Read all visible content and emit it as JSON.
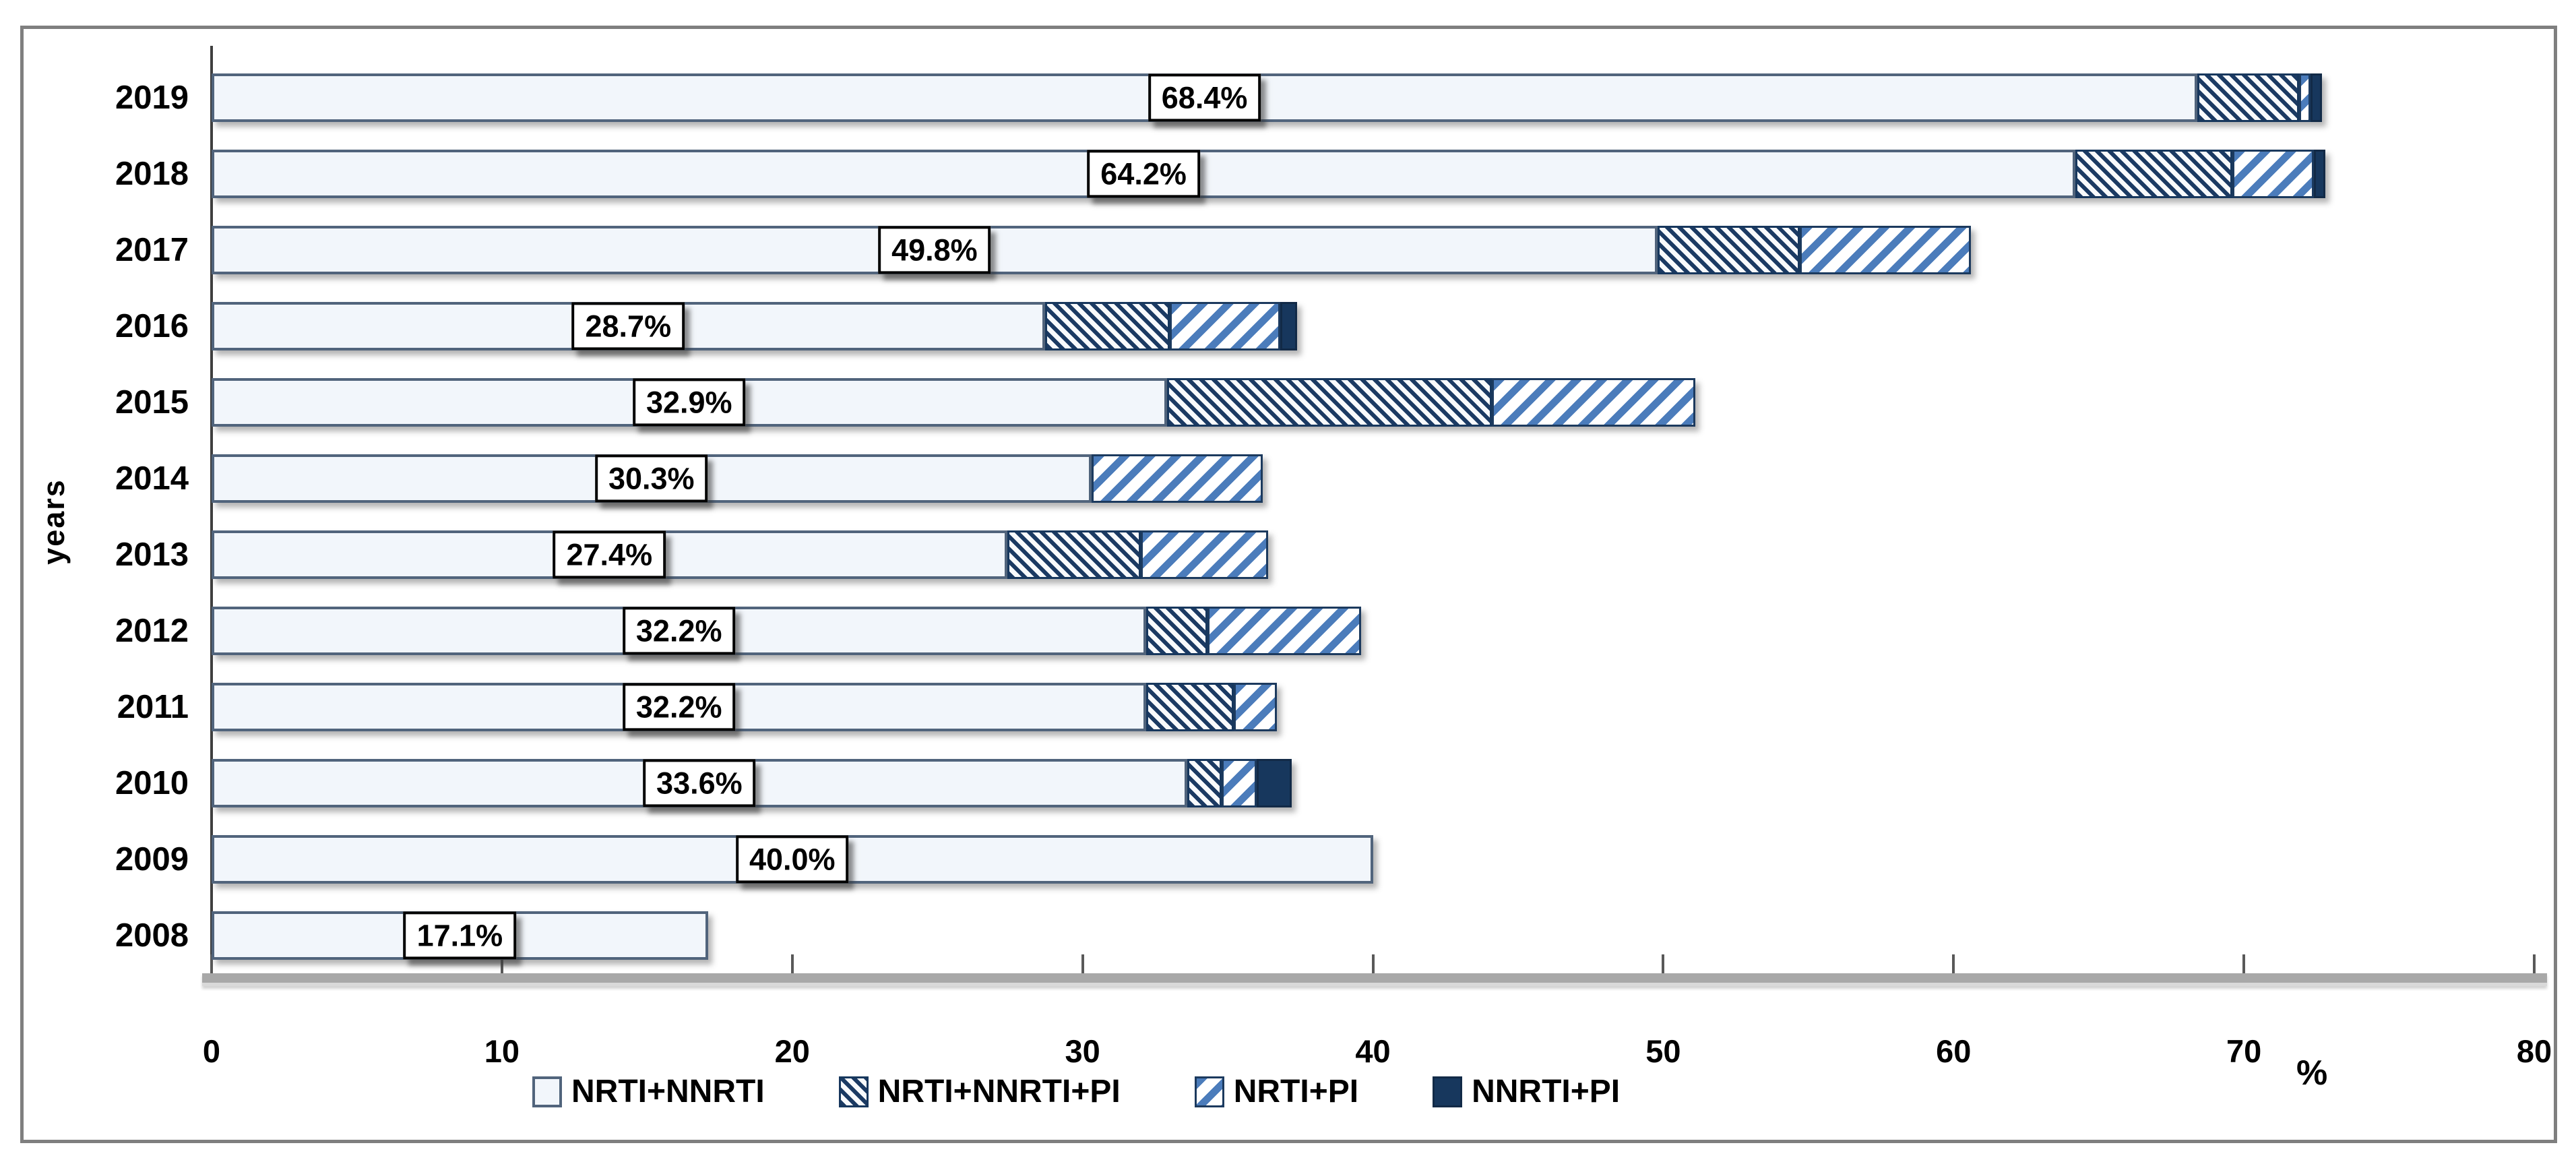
{
  "chart_data": {
    "type": "bar",
    "orientation": "horizontal",
    "stacked": true,
    "title": "",
    "xlabel": "%",
    "ylabel": "years",
    "xlim": [
      0,
      80
    ],
    "xticks": [
      0,
      10,
      20,
      30,
      40,
      50,
      60,
      70,
      80
    ],
    "grid": false,
    "legend_position": "bottom",
    "categories": [
      "2019",
      "2018",
      "2017",
      "2016",
      "2015",
      "2014",
      "2013",
      "2012",
      "2011",
      "2010",
      "2009",
      "2008"
    ],
    "series": [
      {
        "name": "NRTI+NNRTI",
        "style": "light",
        "values": [
          68.4,
          64.2,
          49.8,
          28.7,
          32.9,
          30.3,
          27.4,
          32.2,
          32.2,
          33.6,
          40.0,
          17.1
        ]
      },
      {
        "name": "NRTI+NNRTI+PI",
        "style": "dense",
        "values": [
          3.5,
          5.4,
          4.9,
          4.3,
          11.2,
          0,
          4.6,
          2.1,
          3.0,
          1.2,
          0,
          0
        ]
      },
      {
        "name": "NRTI+PI",
        "style": "slash",
        "values": [
          0.4,
          2.8,
          5.9,
          3.8,
          7.0,
          5.9,
          4.4,
          5.3,
          1.5,
          1.2,
          0,
          0
        ]
      },
      {
        "name": "NNRTI+PI",
        "style": "solid",
        "values": [
          0.4,
          0.4,
          0,
          0.6,
          0,
          0,
          0,
          0,
          0,
          1.2,
          0,
          0
        ]
      }
    ],
    "bar_labels": [
      "68.4%",
      "64.2%",
      "49.8%",
      "28.7%",
      "32.9%",
      "30.3%",
      "27.4%",
      "32.2%",
      "32.2%",
      "33.6%",
      "40.0%",
      "17.1%"
    ]
  },
  "colors": {
    "navy": "#17375d",
    "slate_border": "#51647c",
    "light_fill": "#f2f6fb",
    "hatch_blue": "#4b7cbb",
    "axis_gray": "#a8a8a8",
    "frame_gray": "#7f7f7f",
    "text": "#000000"
  }
}
